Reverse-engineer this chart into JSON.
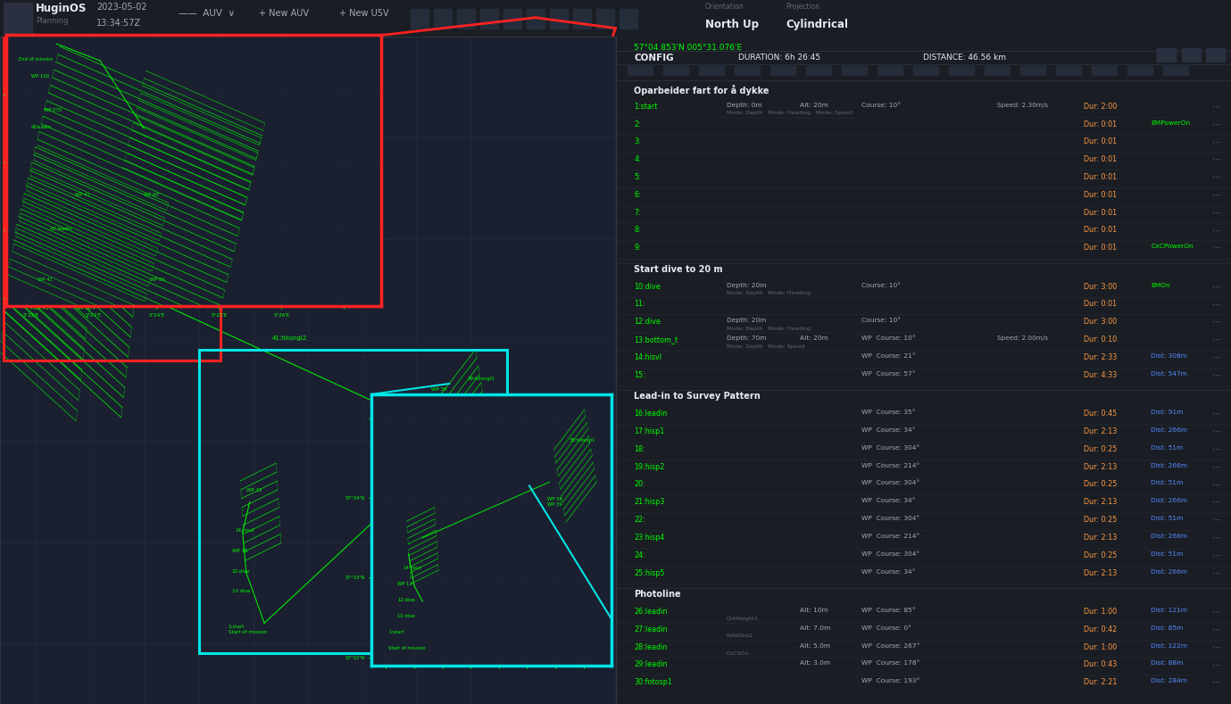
{
  "bg_color": "#1a1e24",
  "panel_color": "#1e2228",
  "map_bg": "#1a2030",
  "map_grid": "#2a3045",
  "toolbar_bg": "#141820",
  "grid_color": "#2e3540",
  "green": "#00ff00",
  "cyan": "#00e5e5",
  "red": "#ff2222",
  "white": "#e8eaf0",
  "light_gray": "#a0aabb",
  "medium_gray": "#606878",
  "blue_accent": "#5588ff",
  "orange_accent": "#ff9944",
  "section_title1": "Oparbeider fart for å dykke",
  "section_title2": "Start dive to 20 m",
  "section_title3": "Lead-in to Survey Pattern",
  "section_title4": "Photoline",
  "coords": "57°04.853'N 005°31.076'E",
  "config_duration": "DURATION: 6h 26:45",
  "config_distance": "DISTANCE: 46.56 km",
  "rows": [
    {
      "id": "1:start",
      "depth": "Depth: 0m",
      "alt": "Alt: 20m",
      "course": "Course: 10°",
      "speed": "Speed: 2.30m/s",
      "dur": "Dur: 2:00",
      "extra": "",
      "note": "Mode: Depth   Mode: Heading   Mode: Speed"
    },
    {
      "id": "2:",
      "depth": "",
      "alt": "",
      "course": "",
      "speed": "",
      "dur": "Dur: 0:01",
      "extra": "EMPowerOn",
      "note": ""
    },
    {
      "id": "3:",
      "depth": "",
      "alt": "",
      "course": "",
      "speed": "",
      "dur": "Dur: 0:01",
      "extra": "",
      "note": ""
    },
    {
      "id": "4:",
      "depth": "",
      "alt": "",
      "course": "",
      "speed": "",
      "dur": "Dur: 0:01",
      "extra": "",
      "note": ""
    },
    {
      "id": "5:",
      "depth": "",
      "alt": "",
      "course": "",
      "speed": "",
      "dur": "Dur: 0:01",
      "extra": "",
      "note": ""
    },
    {
      "id": "6:",
      "depth": "",
      "alt": "",
      "course": "",
      "speed": "",
      "dur": "Dur: 0:01",
      "extra": "",
      "note": ""
    },
    {
      "id": "7:",
      "depth": "",
      "alt": "",
      "course": "",
      "speed": "",
      "dur": "Dur: 0:01",
      "extra": "",
      "note": ""
    },
    {
      "id": "8:",
      "depth": "",
      "alt": "",
      "course": "",
      "speed": "",
      "dur": "Dur: 0:01",
      "extra": "",
      "note": ""
    },
    {
      "id": "9:",
      "depth": "",
      "alt": "",
      "course": "",
      "speed": "",
      "dur": "Dur: 0:01",
      "extra": "CxCPowerOn",
      "note": ""
    },
    {
      "id": "10:dive",
      "depth": "Depth: 20m",
      "alt": "",
      "course": "Course: 10°",
      "speed": "",
      "dur": "Dur: 3:00",
      "extra": "EMOn",
      "note": "Mode: Depth   Mode: Heading"
    },
    {
      "id": "11:",
      "depth": "",
      "alt": "",
      "course": "",
      "speed": "",
      "dur": "Dur: 0:01",
      "extra": "",
      "note": ""
    },
    {
      "id": "12:dive",
      "depth": "Depth: 20m",
      "alt": "",
      "course": "Course: 10°",
      "speed": "",
      "dur": "Dur: 3:00",
      "extra": "",
      "note": "Mode: Depth   Mode: Heading"
    },
    {
      "id": "13:bottom_t",
      "depth": "Depth: 70m",
      "alt": "Alt: 20m",
      "course": "WP  Course: 10°",
      "speed": "Speed: 2.00m/s",
      "dur": "Dur: 0:10",
      "extra": "",
      "note": "Mode: Depth   Mode: Speed"
    },
    {
      "id": "14:hisvl",
      "depth": "",
      "alt": "",
      "course": "WP  Course: 21°",
      "speed": "",
      "dur": "Dur: 2:33",
      "extra": "Dist: 308m",
      "note": ""
    },
    {
      "id": "15:",
      "depth": "",
      "alt": "",
      "course": "WP  Course: 57°",
      "speed": "",
      "dur": "Dur: 4:33",
      "extra": "Dist: 547m",
      "note": ""
    },
    {
      "id": "16:leadin",
      "depth": "",
      "alt": "",
      "course": "WP  Course: 35°",
      "speed": "",
      "dur": "Dur: 0:45",
      "extra": "Dist: 91m",
      "note": ""
    },
    {
      "id": "17:hisp1",
      "depth": "",
      "alt": "",
      "course": "WP  Course: 34°",
      "speed": "",
      "dur": "Dur: 2:13",
      "extra": "Dist: 266m",
      "note": ""
    },
    {
      "id": "18:",
      "depth": "",
      "alt": "",
      "course": "WP  Course: 304°",
      "speed": "",
      "dur": "Dur: 0:25",
      "extra": "Dist: 51m",
      "note": ""
    },
    {
      "id": "19:hisp2",
      "depth": "",
      "alt": "",
      "course": "WP  Course: 214°",
      "speed": "",
      "dur": "Dur: 2:13",
      "extra": "Dist: 266m",
      "note": ""
    },
    {
      "id": "20:",
      "depth": "",
      "alt": "",
      "course": "WP  Course: 304°",
      "speed": "",
      "dur": "Dur: 0:25",
      "extra": "Dist: 51m",
      "note": ""
    },
    {
      "id": "21:hisp3",
      "depth": "",
      "alt": "",
      "course": "WP  Course: 34°",
      "speed": "",
      "dur": "Dur: 2:13",
      "extra": "Dist: 266m",
      "note": ""
    },
    {
      "id": "22:",
      "depth": "",
      "alt": "",
      "course": "WP  Course: 304°",
      "speed": "",
      "dur": "Dur: 0:25",
      "extra": "Dist: 51m",
      "note": ""
    },
    {
      "id": "23:hisp4",
      "depth": "",
      "alt": "",
      "course": "WP  Course: 214°",
      "speed": "",
      "dur": "Dur: 2:13",
      "extra": "Dist: 266m",
      "note": ""
    },
    {
      "id": "24:",
      "depth": "",
      "alt": "",
      "course": "WP  Course: 304°",
      "speed": "",
      "dur": "Dur: 0:25",
      "extra": "Dist: 51m",
      "note": ""
    },
    {
      "id": "25:hisp5",
      "depth": "",
      "alt": "",
      "course": "WP  Course: 34°",
      "speed": "",
      "dur": "Dur: 2:13",
      "extra": "Dist: 266m",
      "note": ""
    },
    {
      "id": "26:leadin",
      "depth": "",
      "alt": "Alt: 10m",
      "course": "WP  Course: 85°",
      "speed": "",
      "dur": "Dur: 1:00",
      "extra": "Dist: 121m",
      "note": "CritHeight1"
    },
    {
      "id": "27:leadin",
      "depth": "",
      "alt": "Alt: 7.0m",
      "course": "WP  Course: 0°",
      "speed": "",
      "dur": "Dur: 0:42",
      "extra": "Dist: 85m",
      "note": "SafeDist2"
    },
    {
      "id": "28:leadin",
      "depth": "",
      "alt": "Alt: 5.0m",
      "course": "WP  Course: 267°",
      "speed": "",
      "dur": "Dur: 1:00",
      "extra": "Dist: 122m",
      "note": "CxCSOn"
    },
    {
      "id": "29:leadin",
      "depth": "",
      "alt": "Alt: 3.0m",
      "course": "WP  Course: 178°",
      "speed": "",
      "dur": "Dur: 0:43",
      "extra": "Dist: 88m",
      "note": ""
    },
    {
      "id": "30:fotosp1",
      "depth": "",
      "alt": "",
      "course": "WP  Course: 193°",
      "speed": "",
      "dur": "Dur: 2:21",
      "extra": "Dist: 284m",
      "note": ""
    }
  ]
}
